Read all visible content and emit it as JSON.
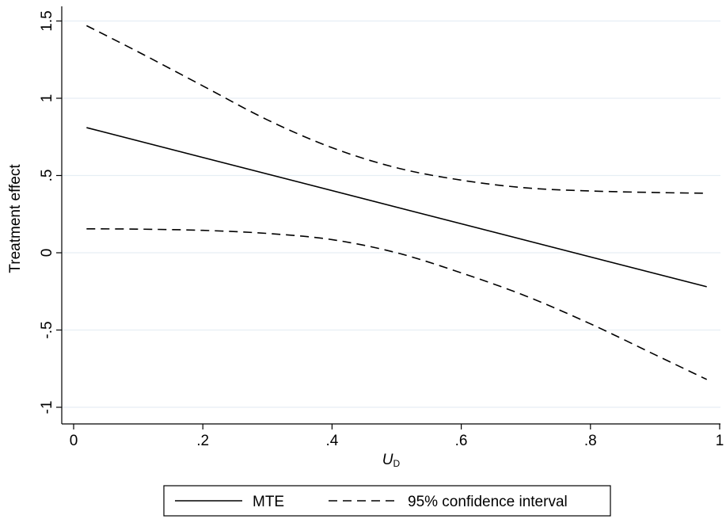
{
  "chart_data": {
    "type": "line",
    "xlabel_main": "U",
    "xlabel_sub": "D",
    "ylabel": "Treatment effect",
    "xlim": [
      0,
      1
    ],
    "ylim": [
      -1.1,
      1.55
    ],
    "x_ticks": [
      0,
      0.2,
      0.4,
      0.6,
      0.8,
      1
    ],
    "x_tick_labels": [
      "0",
      ".2",
      ".4",
      ".6",
      ".8",
      "1"
    ],
    "y_ticks": [
      -1,
      -0.5,
      0,
      0.5,
      1,
      1.5
    ],
    "y_tick_labels": [
      "-1",
      "-.5",
      "0",
      ".5",
      "1",
      "1.5"
    ],
    "grid": true,
    "legend_position": "bottom-center",
    "legend_entries": [
      "MTE",
      "95% confidence interval"
    ],
    "series": [
      {
        "name": "MTE",
        "style": "solid",
        "color": "#000000",
        "x": [
          0.02,
          0.98
        ],
        "y": [
          0.81,
          -0.22
        ]
      },
      {
        "name": "95% confidence interval",
        "style": "dashed",
        "color": "#000000",
        "x": [
          0.02,
          0.1,
          0.2,
          0.3,
          0.4,
          0.5,
          0.6,
          0.7,
          0.8,
          0.9,
          0.98
        ],
        "y": [
          1.47,
          1.3,
          1.08,
          0.86,
          0.68,
          0.55,
          0.47,
          0.42,
          0.4,
          0.39,
          0.385
        ]
      },
      {
        "name": "95% confidence interval",
        "style": "dashed",
        "color": "#000000",
        "x": [
          0.02,
          0.1,
          0.2,
          0.3,
          0.4,
          0.5,
          0.6,
          0.7,
          0.8,
          0.9,
          0.98
        ],
        "y": [
          0.155,
          0.153,
          0.145,
          0.125,
          0.085,
          0.0,
          -0.13,
          -0.28,
          -0.46,
          -0.66,
          -0.82
        ]
      }
    ]
  }
}
